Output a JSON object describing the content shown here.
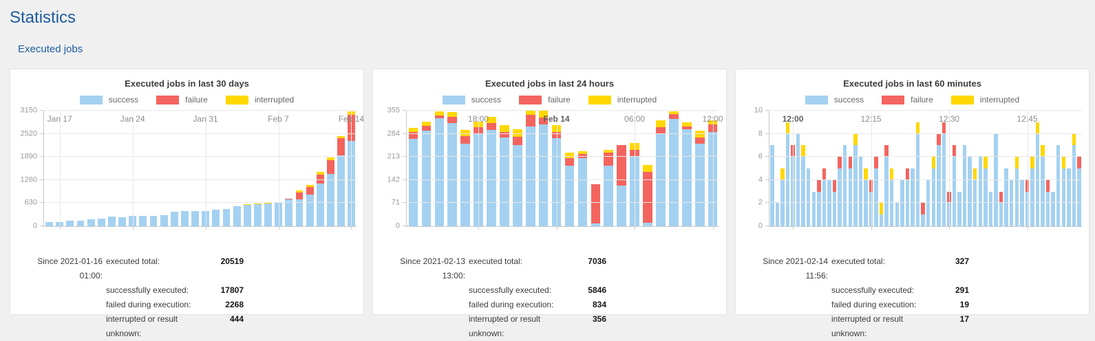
{
  "page": {
    "title": "Statistics",
    "section": "Executed jobs"
  },
  "colors": {
    "success": "#a4d1f1",
    "failure": "#f4645f",
    "interrupted": "#ffd800",
    "heading": "#1d5c9e",
    "grid": "#e8e8e8",
    "axis": "#c9c9c9"
  },
  "chart_data": [
    {
      "type": "bar",
      "stacked": true,
      "title": "Executed jobs in last 30 days",
      "legend": [
        "success",
        "failure",
        "interrupted"
      ],
      "ylim": [
        0,
        3150
      ],
      "y_ticks": [
        0,
        630,
        1260,
        1890,
        2520,
        3150
      ],
      "x_ticks": [
        {
          "label": "Jan 17",
          "index": 1,
          "bold": false
        },
        {
          "label": "Jan 24",
          "index": 8,
          "bold": false
        },
        {
          "label": "Jan 31",
          "index": 15,
          "bold": false
        },
        {
          "label": "Feb 7",
          "index": 22,
          "bold": false
        },
        {
          "label": "Feb 14",
          "index": 29,
          "bold": false
        }
      ],
      "series": [
        {
          "name": "success",
          "values": [
            115,
            120,
            150,
            150,
            195,
            205,
            265,
            235,
            285,
            280,
            280,
            295,
            390,
            415,
            405,
            420,
            445,
            465,
            550,
            585,
            600,
            620,
            650,
            735,
            735,
            860,
            1155,
            1425,
            1935,
            2320
          ]
        },
        {
          "name": "failure",
          "values": [
            0,
            0,
            0,
            0,
            0,
            0,
            0,
            0,
            0,
            0,
            0,
            0,
            0,
            0,
            0,
            0,
            0,
            0,
            0,
            4,
            6,
            8,
            10,
            14,
            190,
            215,
            260,
            380,
            460,
            715
          ]
        },
        {
          "name": "interrupted",
          "values": [
            0,
            0,
            0,
            0,
            0,
            0,
            0,
            0,
            0,
            0,
            0,
            0,
            0,
            0,
            0,
            0,
            0,
            0,
            0,
            3,
            4,
            5,
            6,
            10,
            45,
            50,
            60,
            70,
            60,
            90
          ]
        }
      ],
      "stats": {
        "since": "Since 2021-01-16 01:00:",
        "rows": [
          {
            "label": "executed total:",
            "value": "20519"
          },
          {
            "label": "successfully executed:",
            "value": "17807"
          },
          {
            "label": "failed during execution:",
            "value": "2268"
          },
          {
            "label": "interrupted or result unknown:",
            "value": "444"
          }
        ]
      }
    },
    {
      "type": "bar",
      "stacked": true,
      "title": "Executed jobs in last 24 hours",
      "legend": [
        "success",
        "failure",
        "interrupted"
      ],
      "ylim": [
        0,
        355
      ],
      "y_ticks": [
        0,
        71,
        142,
        213,
        284,
        355
      ],
      "x_ticks": [
        {
          "label": "18:00",
          "index": 5,
          "bold": false
        },
        {
          "label": "Feb 14",
          "index": 11,
          "bold": true
        },
        {
          "label": "06:00",
          "index": 17,
          "bold": false
        },
        {
          "label": "12:00",
          "index": 23,
          "bold": false
        }
      ],
      "series": [
        {
          "name": "success",
          "values": [
            269,
            293,
            332,
            316,
            254,
            284,
            296,
            273,
            250,
            306,
            312,
            271,
            185,
            210,
            8,
            185,
            125,
            213,
            10,
            284,
            330,
            297,
            253,
            290
          ]
        },
        {
          "name": "failure",
          "values": [
            20,
            16,
            9,
            19,
            22,
            21,
            22,
            16,
            24,
            36,
            22,
            18,
            24,
            12,
            120,
            42,
            125,
            21,
            158,
            21,
            14,
            10,
            20,
            22
          ]
        },
        {
          "name": "interrupted",
          "values": [
            13,
            12,
            12,
            15,
            19,
            17,
            17,
            21,
            23,
            13,
            21,
            22,
            18,
            9,
            0,
            7,
            0,
            22,
            20,
            20,
            9,
            13,
            20,
            13
          ]
        }
      ],
      "stats": {
        "since": "Since 2021-02-13 13:00:",
        "rows": [
          {
            "label": "executed total:",
            "value": "7036"
          },
          {
            "label": "successfully executed:",
            "value": "5846"
          },
          {
            "label": "failed during execution:",
            "value": "834"
          },
          {
            "label": "interrupted or result unknown:",
            "value": "356"
          }
        ]
      }
    },
    {
      "type": "bar",
      "stacked": true,
      "title": "Executed jobs in last 60 minutes",
      "legend": [
        "success",
        "failure",
        "interrupted"
      ],
      "ylim": [
        0,
        10
      ],
      "y_ticks": [
        0,
        2,
        4,
        6,
        8,
        10
      ],
      "x_ticks": [
        {
          "label": "12:00",
          "index": 4,
          "bold": true
        },
        {
          "label": "12:15",
          "index": 19,
          "bold": false
        },
        {
          "label": "12:30",
          "index": 34,
          "bold": false
        },
        {
          "label": "12:45",
          "index": 49,
          "bold": false
        }
      ],
      "series": [
        {
          "name": "success",
          "values": [
            7,
            2,
            4,
            8,
            6,
            8,
            6,
            5,
            3,
            3,
            4,
            4,
            3,
            5,
            7,
            5,
            7,
            6,
            4,
            3,
            5,
            1,
            6,
            4,
            2,
            4,
            4,
            5,
            8,
            1,
            4,
            5,
            7,
            8,
            2,
            6,
            3,
            7,
            6,
            4,
            6,
            5,
            3,
            8,
            2,
            5,
            4,
            5,
            4,
            3,
            5,
            8,
            6,
            3,
            3,
            7,
            5,
            5,
            7,
            5
          ]
        },
        {
          "name": "failure",
          "values": [
            0,
            0,
            0,
            0,
            1,
            0,
            0,
            0,
            0,
            1,
            1,
            0,
            1,
            1,
            0,
            1,
            0,
            0,
            0,
            1,
            1,
            0,
            1,
            0,
            0,
            0,
            1,
            0,
            0,
            1,
            0,
            0,
            1,
            1,
            1,
            1,
            0,
            0,
            0,
            0,
            0,
            0,
            0,
            0,
            1,
            0,
            0,
            0,
            0,
            1,
            0,
            0,
            0,
            1,
            0,
            0,
            0,
            0,
            0,
            1
          ]
        },
        {
          "name": "interrupted",
          "values": [
            0,
            0,
            1,
            1,
            0,
            0,
            1,
            0,
            0,
            0,
            0,
            0,
            0,
            0,
            0,
            0,
            1,
            0,
            1,
            0,
            0,
            1,
            0,
            1,
            0,
            0,
            0,
            0,
            1,
            0,
            0,
            1,
            0,
            0,
            0,
            0,
            0,
            0,
            0,
            1,
            0,
            1,
            0,
            0,
            0,
            0,
            0,
            1,
            0,
            0,
            1,
            1,
            1,
            0,
            0,
            0,
            1,
            0,
            1,
            0
          ]
        }
      ],
      "stats": {
        "since": "Since 2021-02-14 11:56:",
        "rows": [
          {
            "label": "executed total:",
            "value": "327"
          },
          {
            "label": "successfully executed:",
            "value": "291"
          },
          {
            "label": "failed during execution:",
            "value": "19"
          },
          {
            "label": "interrupted or result unknown:",
            "value": "17"
          }
        ]
      }
    }
  ]
}
